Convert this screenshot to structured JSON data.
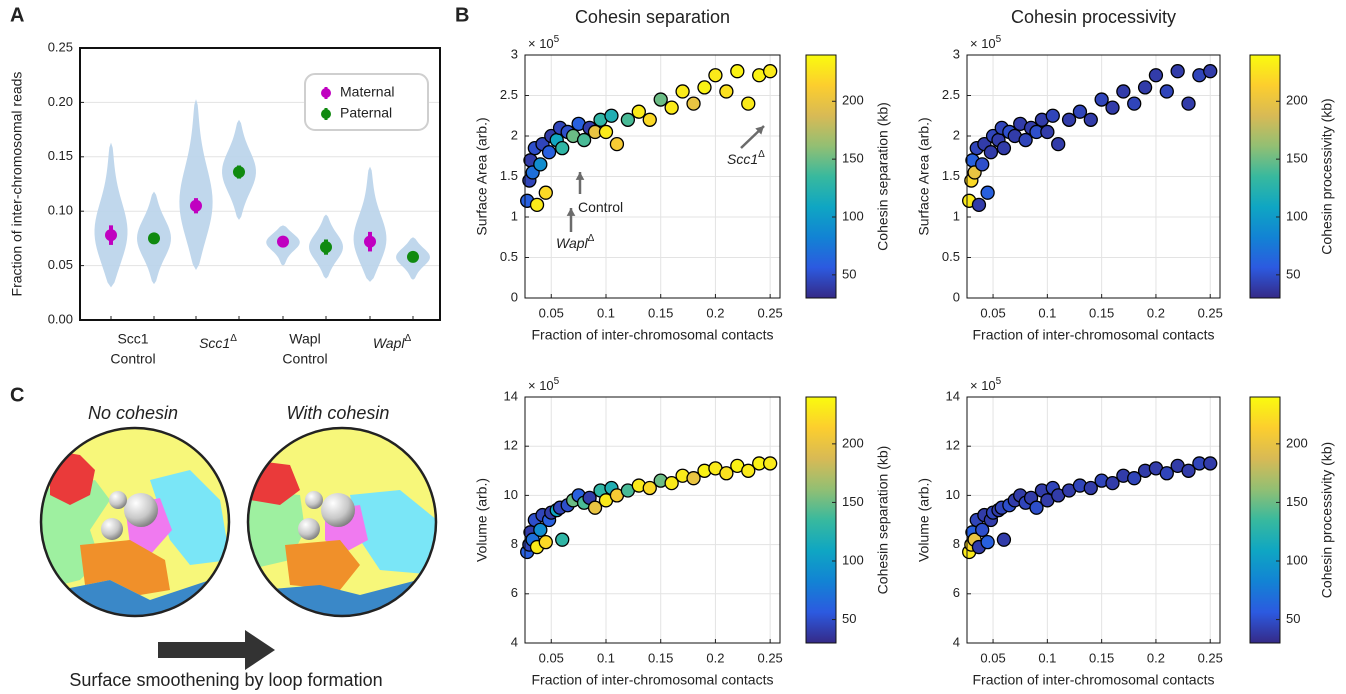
{
  "panel_labels": [
    "A",
    "B",
    "C"
  ],
  "panel_c": {
    "left_title": "No cohesin",
    "right_title": "With cohesin",
    "caption": "Surface smoothening by loop formation"
  },
  "chart_data": [
    {
      "type": "violin",
      "ylabel": "Fraction of inter-chromosomal reads",
      "ylim": [
        0,
        0.25
      ],
      "yticks": [
        {
          "value": 0,
          "label": "0.00"
        },
        {
          "value": 0.05,
          "label": "0.05"
        },
        {
          "value": 0.1,
          "label": "0.10"
        },
        {
          "value": 0.15,
          "label": "0.15"
        },
        {
          "value": 0.2,
          "label": "0.20"
        },
        {
          "value": 0.25,
          "label": "0.25"
        }
      ],
      "grid": true,
      "legend": "upper right",
      "violin_color": "#b9d3ea",
      "categories": [
        {
          "lines": [
            "Scc1",
            "Control"
          ]
        },
        {
          "text": "Scc1",
          "sup": "Δ"
        },
        {
          "lines": [
            "Wapl",
            "Control"
          ]
        },
        {
          "text": "Wapl",
          "sup": "Δ"
        }
      ],
      "series": [
        {
          "name": "Maternal",
          "color": "#c000c0",
          "values": [
            0.078,
            0.105,
            0.072,
            0.072
          ],
          "errors": [
            0.009,
            0.007,
            0.003,
            0.009
          ],
          "violin_min": [
            0.03,
            0.046,
            0.05,
            0.035
          ],
          "violin_max": [
            0.163,
            0.203,
            0.087,
            0.141
          ]
        },
        {
          "name": "Paternal",
          "color": "#108a10",
          "values": [
            0.075,
            0.136,
            0.067,
            0.058
          ],
          "errors": [
            0.003,
            0.006,
            0.007,
            0.003
          ],
          "violin_min": [
            0.033,
            0.092,
            0.038,
            0.037
          ],
          "violin_max": [
            0.118,
            0.184,
            0.097,
            0.076
          ]
        }
      ]
    },
    {
      "type": "scatter",
      "title": "Cohesin separation",
      "xlabel": "Fraction of inter-chromosomal contacts",
      "ylabel": "Surface Area (arb.)",
      "y_multiplier": {
        "base": "× 10",
        "exponent": "5"
      },
      "xlim": [
        0.026,
        0.259
      ],
      "ylim": [
        0,
        3
      ],
      "xticks": [
        0.05,
        0.1,
        0.15,
        0.2,
        0.25
      ],
      "yticks": [
        0,
        0.5,
        1,
        1.5,
        2,
        2.5,
        3
      ],
      "grid": true,
      "colorbar": {
        "label": "Cohesin separation (kb)",
        "clim": [
          30,
          240
        ],
        "ticks": [
          50,
          100,
          150,
          200
        ]
      },
      "colormap": [
        "#352a87",
        "#2c5ae0",
        "#1283d4",
        "#0fa6c3",
        "#38b99e",
        "#92bf73",
        "#d8ba55",
        "#fcce2e",
        "#f9fb0e"
      ],
      "annotations": [
        {
          "text": "Control"
        },
        {
          "text": "Wapl",
          "sup": "Δ"
        },
        {
          "text": "Scc1",
          "sup": "Δ"
        }
      ],
      "x": [
        0.028,
        0.03,
        0.031,
        0.033,
        0.035,
        0.037,
        0.04,
        0.042,
        0.045,
        0.048,
        0.05,
        0.055,
        0.058,
        0.06,
        0.065,
        0.07,
        0.075,
        0.08,
        0.085,
        0.09,
        0.095,
        0.1,
        0.105,
        0.11,
        0.12,
        0.13,
        0.14,
        0.15,
        0.16,
        0.17,
        0.18,
        0.19,
        0.2,
        0.21,
        0.22,
        0.23,
        0.24,
        0.25
      ],
      "y": [
        1.2,
        1.45,
        1.7,
        1.55,
        1.85,
        1.15,
        1.65,
        1.9,
        1.3,
        1.8,
        2.0,
        1.95,
        2.1,
        1.85,
        2.05,
        2.0,
        2.15,
        1.95,
        2.1,
        2.05,
        2.2,
        2.05,
        2.25,
        1.9,
        2.2,
        2.3,
        2.2,
        2.45,
        2.35,
        2.55,
        2.4,
        2.6,
        2.75,
        2.55,
        2.8,
        2.4,
        2.75,
        2.8
      ],
      "color_values": [
        60,
        45,
        40,
        70,
        50,
        230,
        90,
        45,
        220,
        60,
        40,
        110,
        45,
        130,
        50,
        150,
        60,
        140,
        40,
        200,
        130,
        230,
        120,
        210,
        140,
        230,
        220,
        150,
        230,
        230,
        200,
        235,
        230,
        225,
        235,
        230,
        235,
        230
      ]
    },
    {
      "type": "scatter",
      "title": "Cohesin processivity",
      "xlabel": "Fraction of inter-chromosomal contacts",
      "ylabel": "Surface Area (arb.)",
      "y_multiplier": {
        "base": "× 10",
        "exponent": "5"
      },
      "xlim": [
        0.026,
        0.259
      ],
      "ylim": [
        0,
        3
      ],
      "xticks": [
        0.05,
        0.1,
        0.15,
        0.2,
        0.25
      ],
      "yticks": [
        0,
        0.5,
        1,
        1.5,
        2,
        2.5,
        3
      ],
      "grid": true,
      "colorbar": {
        "label": "Cohesin processivity (kb)",
        "clim": [
          30,
          240
        ],
        "ticks": [
          50,
          100,
          150,
          200
        ]
      },
      "colormap": [
        "#352a87",
        "#2c5ae0",
        "#1283d4",
        "#0fa6c3",
        "#38b99e",
        "#92bf73",
        "#d8ba55",
        "#fcce2e",
        "#f9fb0e"
      ],
      "x": [
        0.028,
        0.03,
        0.031,
        0.033,
        0.035,
        0.037,
        0.04,
        0.042,
        0.045,
        0.048,
        0.05,
        0.055,
        0.058,
        0.06,
        0.065,
        0.07,
        0.075,
        0.08,
        0.085,
        0.09,
        0.095,
        0.1,
        0.105,
        0.11,
        0.12,
        0.13,
        0.14,
        0.15,
        0.16,
        0.17,
        0.18,
        0.19,
        0.2,
        0.21,
        0.22,
        0.23,
        0.24,
        0.25
      ],
      "y": [
        1.2,
        1.45,
        1.7,
        1.55,
        1.85,
        1.15,
        1.65,
        1.9,
        1.3,
        1.8,
        2.0,
        1.95,
        2.1,
        1.85,
        2.05,
        2.0,
        2.15,
        1.95,
        2.1,
        2.05,
        2.2,
        2.05,
        2.25,
        1.9,
        2.2,
        2.3,
        2.2,
        2.45,
        2.35,
        2.55,
        2.4,
        2.6,
        2.75,
        2.55,
        2.8,
        2.4,
        2.75,
        2.8
      ],
      "color_values": [
        230,
        220,
        60,
        200,
        45,
        40,
        50,
        40,
        60,
        40,
        45,
        40,
        45,
        40,
        50,
        40,
        40,
        45,
        40,
        50,
        40,
        40,
        45,
        40,
        40,
        45,
        40,
        45,
        40,
        40,
        45,
        40,
        40,
        45,
        40,
        40,
        45,
        40
      ]
    },
    {
      "type": "scatter",
      "xlabel": "Fraction of inter-chromosomal contacts",
      "ylabel": "Volume (arb.)",
      "y_multiplier": {
        "base": "× 10",
        "exponent": "5"
      },
      "xlim": [
        0.026,
        0.259
      ],
      "ylim": [
        4,
        14
      ],
      "xticks": [
        0.05,
        0.1,
        0.15,
        0.2,
        0.25
      ],
      "yticks": [
        4,
        6,
        8,
        10,
        12,
        14
      ],
      "grid": true,
      "colorbar": {
        "label": "Cohesin separation (kb)",
        "clim": [
          30,
          240
        ],
        "ticks": [
          50,
          100,
          150,
          200
        ]
      },
      "colormap": [
        "#352a87",
        "#2c5ae0",
        "#1283d4",
        "#0fa6c3",
        "#38b99e",
        "#92bf73",
        "#d8ba55",
        "#fcce2e",
        "#f9fb0e"
      ],
      "x": [
        0.028,
        0.03,
        0.031,
        0.033,
        0.035,
        0.037,
        0.04,
        0.042,
        0.045,
        0.048,
        0.05,
        0.055,
        0.058,
        0.06,
        0.065,
        0.07,
        0.075,
        0.08,
        0.085,
        0.09,
        0.095,
        0.1,
        0.105,
        0.11,
        0.12,
        0.13,
        0.14,
        0.15,
        0.16,
        0.17,
        0.18,
        0.19,
        0.2,
        0.21,
        0.22,
        0.23,
        0.24,
        0.25
      ],
      "y": [
        7.7,
        8.0,
        8.5,
        8.2,
        9.0,
        7.9,
        8.6,
        9.2,
        8.1,
        9.0,
        9.3,
        9.4,
        9.5,
        8.2,
        9.6,
        9.8,
        10.0,
        9.7,
        9.9,
        9.5,
        10.2,
        9.8,
        10.3,
        10.0,
        10.2,
        10.4,
        10.3,
        10.6,
        10.5,
        10.8,
        10.7,
        11.0,
        11.1,
        10.9,
        11.2,
        11.0,
        11.3,
        11.3
      ],
      "color_values": [
        60,
        45,
        40,
        70,
        50,
        230,
        90,
        45,
        220,
        60,
        40,
        110,
        45,
        130,
        50,
        150,
        60,
        140,
        40,
        200,
        130,
        230,
        120,
        210,
        140,
        230,
        220,
        150,
        230,
        230,
        200,
        235,
        230,
        225,
        235,
        230,
        235,
        230
      ]
    },
    {
      "type": "scatter",
      "xlabel": "Fraction of inter-chromosomal contacts",
      "ylabel": "Volume (arb.)",
      "y_multiplier": {
        "base": "× 10",
        "exponent": "5"
      },
      "xlim": [
        0.026,
        0.259
      ],
      "ylim": [
        4,
        14
      ],
      "xticks": [
        0.05,
        0.1,
        0.15,
        0.2,
        0.25
      ],
      "yticks": [
        4,
        6,
        8,
        10,
        12,
        14
      ],
      "grid": true,
      "colorbar": {
        "label": "Cohesin processivity (kb)",
        "clim": [
          30,
          240
        ],
        "ticks": [
          50,
          100,
          150,
          200
        ]
      },
      "colormap": [
        "#352a87",
        "#2c5ae0",
        "#1283d4",
        "#0fa6c3",
        "#38b99e",
        "#92bf73",
        "#d8ba55",
        "#fcce2e",
        "#f9fb0e"
      ],
      "x": [
        0.028,
        0.03,
        0.031,
        0.033,
        0.035,
        0.037,
        0.04,
        0.042,
        0.045,
        0.048,
        0.05,
        0.055,
        0.058,
        0.06,
        0.065,
        0.07,
        0.075,
        0.08,
        0.085,
        0.09,
        0.095,
        0.1,
        0.105,
        0.11,
        0.12,
        0.13,
        0.14,
        0.15,
        0.16,
        0.17,
        0.18,
        0.19,
        0.2,
        0.21,
        0.22,
        0.23,
        0.24,
        0.25
      ],
      "y": [
        7.7,
        8.0,
        8.5,
        8.2,
        9.0,
        7.9,
        8.6,
        9.2,
        8.1,
        9.0,
        9.3,
        9.4,
        9.5,
        8.2,
        9.6,
        9.8,
        10.0,
        9.7,
        9.9,
        9.5,
        10.2,
        9.8,
        10.3,
        10.0,
        10.2,
        10.4,
        10.3,
        10.6,
        10.5,
        10.8,
        10.7,
        11.0,
        11.1,
        10.9,
        11.2,
        11.0,
        11.3,
        11.3
      ],
      "color_values": [
        230,
        220,
        60,
        200,
        45,
        40,
        50,
        40,
        60,
        40,
        45,
        40,
        45,
        40,
        50,
        40,
        40,
        45,
        40,
        50,
        40,
        40,
        45,
        40,
        40,
        45,
        40,
        45,
        40,
        40,
        45,
        40,
        40,
        45,
        40,
        40,
        45,
        40
      ]
    }
  ]
}
